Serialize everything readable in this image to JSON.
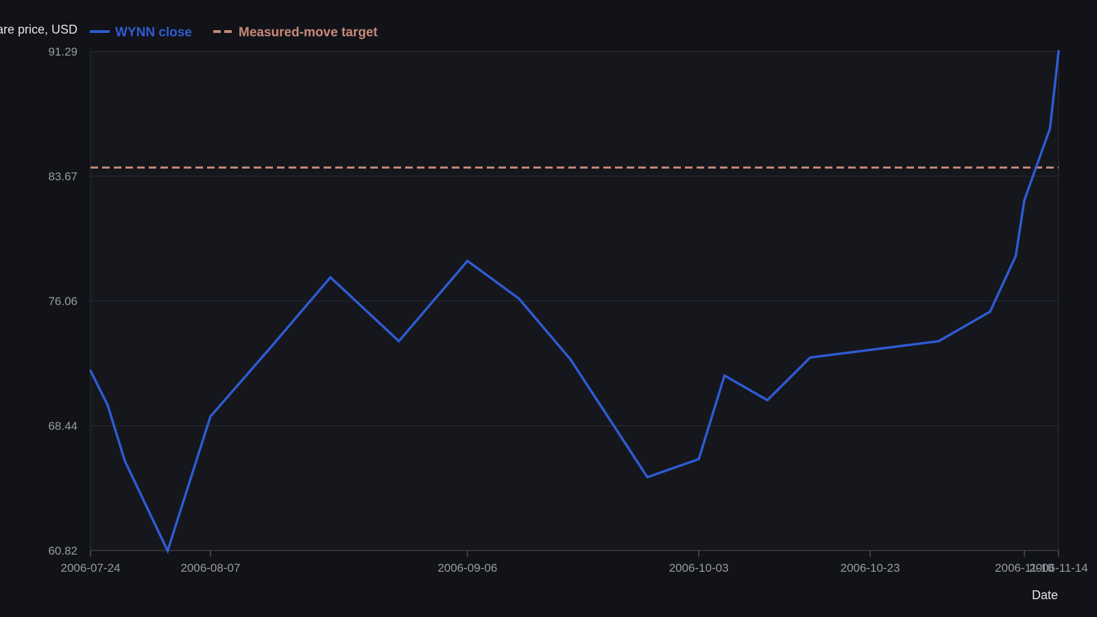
{
  "chart_data": {
    "type": "line",
    "ylabel": "Share price, USD",
    "xlabel": "Date",
    "y_ticks": [
      "60.82",
      "68.44",
      "76.06",
      "83.67",
      "91.29"
    ],
    "ylim": [
      60.82,
      91.29
    ],
    "x_ticks": [
      "2006-07-24",
      "2006-08-07",
      "2006-09-06",
      "2006-10-03",
      "2006-10-23",
      "2006-11-10",
      "2006-11-14"
    ],
    "xlim": [
      "2006-07-24",
      "2006-11-14"
    ],
    "grid": true,
    "legend_position": "top-left",
    "series": [
      {
        "name": "WYNN close",
        "color": "#2f5bd3",
        "style": "solid",
        "x": [
          "2006-07-24",
          "2006-07-26",
          "2006-07-28",
          "2006-08-02",
          "2006-08-07",
          "2006-08-14",
          "2006-08-21",
          "2006-08-29",
          "2006-09-06",
          "2006-09-12",
          "2006-09-18",
          "2006-09-27",
          "2006-10-03",
          "2006-10-06",
          "2006-10-11",
          "2006-10-16",
          "2006-10-31",
          "2006-11-06",
          "2006-11-09",
          "2006-11-10",
          "2006-11-13",
          "2006-11-14"
        ],
        "y": [
          71.8,
          69.7,
          66.3,
          60.8,
          69.0,
          73.2,
          77.5,
          73.6,
          78.5,
          76.2,
          72.5,
          65.3,
          66.4,
          71.5,
          70.0,
          72.6,
          73.6,
          75.4,
          78.8,
          82.2,
          86.6,
          91.3
        ]
      },
      {
        "name": "Measured-move target",
        "color": "#c98878",
        "style": "dashed",
        "y_constant": 84.2
      }
    ]
  }
}
